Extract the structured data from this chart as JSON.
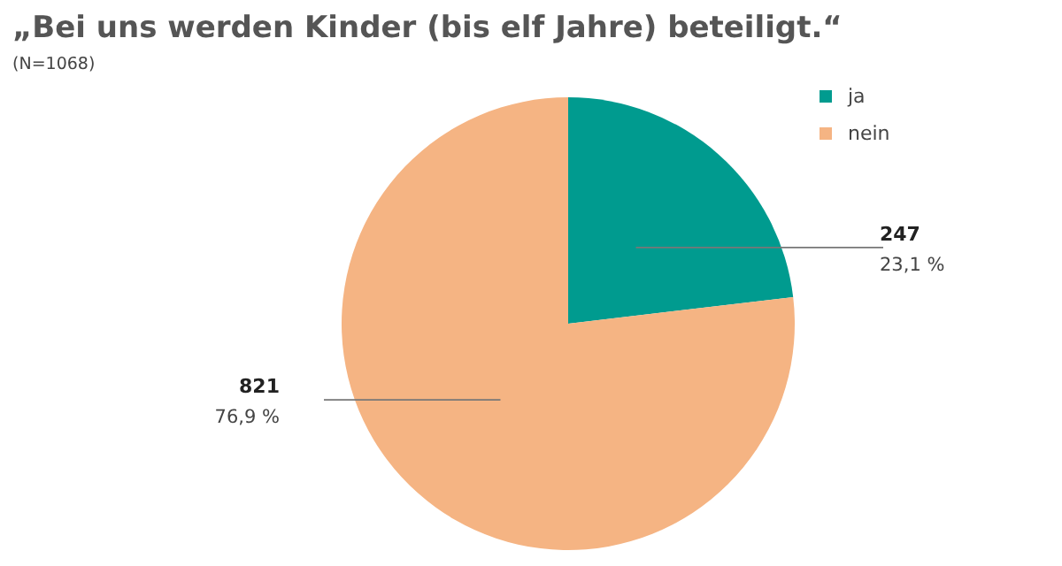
{
  "chart_data": {
    "type": "pie",
    "title": "„Bei uns werden Kinder (bis elf Jahre) beteiligt.“",
    "subtitle": "(N=1068)",
    "categories": [
      "ja",
      "nein"
    ],
    "values": [
      247,
      821
    ],
    "colors": [
      "#009b8f",
      "#f5b483"
    ],
    "data_labels": true,
    "annotations": [
      {
        "text": "23,1 %",
        "x": "ja"
      },
      {
        "text": "76,9 %",
        "x": "nein"
      }
    ],
    "legend": "top right"
  }
}
